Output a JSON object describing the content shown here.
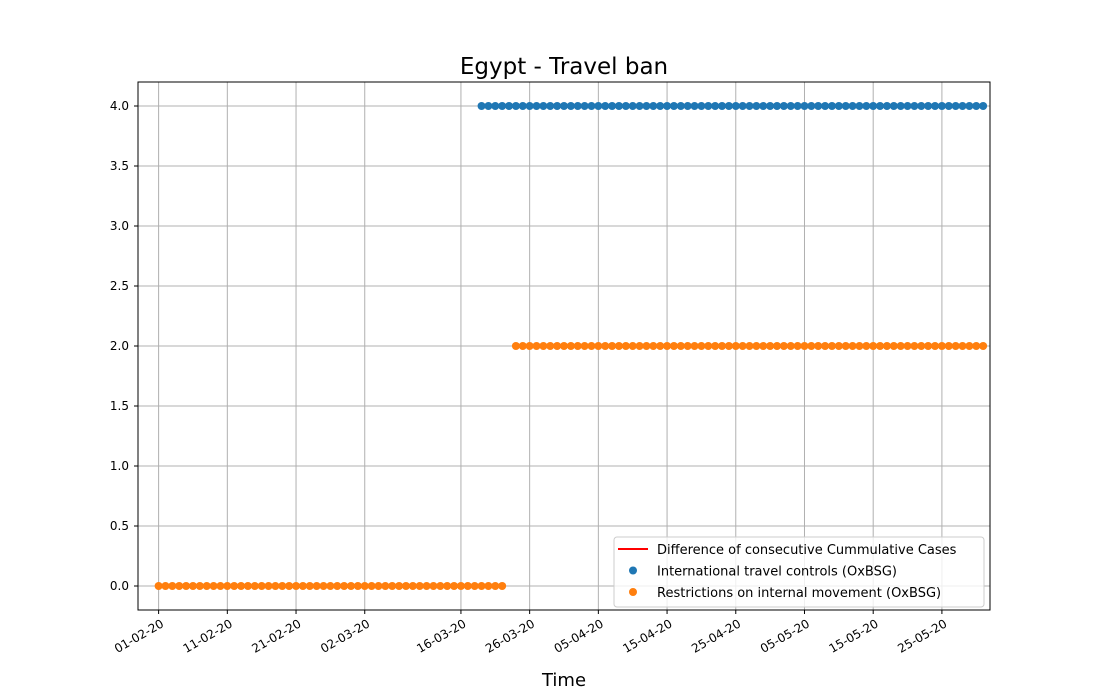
{
  "chart_data": {
    "type": "scatter",
    "title": "Egypt - Travel ban",
    "xlabel": "Time",
    "ylabel": "",
    "x_type": "date",
    "xlim": [
      "2020-01-29",
      "2020-06-01"
    ],
    "ylim": [
      -0.2,
      4.2
    ],
    "grid": true,
    "x_tick_labels": [
      "01-02-20",
      "11-02-20",
      "21-02-20",
      "02-03-20",
      "16-03-20",
      "26-03-20",
      "05-04-20",
      "15-04-20",
      "25-04-20",
      "05-05-20",
      "15-05-20",
      "25-05-20"
    ],
    "y_ticks": [
      "0.0",
      "0.5",
      "1.0",
      "1.5",
      "2.0",
      "2.5",
      "3.0",
      "3.5",
      "4.0"
    ],
    "legend_position": "lower-right",
    "series": [
      {
        "name": "Difference of consecutive Cummulative Cases",
        "kind": "line",
        "color": "#ff0000",
        "segments": []
      },
      {
        "name": "International travel controls (OxBSG)",
        "kind": "marker",
        "color": "#1f77b4",
        "segments": [
          {
            "from": "2020-03-19",
            "to": "2020-05-31",
            "value": 4
          }
        ]
      },
      {
        "name": "Restrictions on internal movement (OxBSG)",
        "kind": "marker",
        "color": "#ff7f0e",
        "segments": [
          {
            "from": "2020-02-01",
            "to": "2020-03-22",
            "value": 0
          },
          {
            "from": "2020-03-24",
            "to": "2020-05-31",
            "value": 2
          }
        ]
      }
    ]
  }
}
